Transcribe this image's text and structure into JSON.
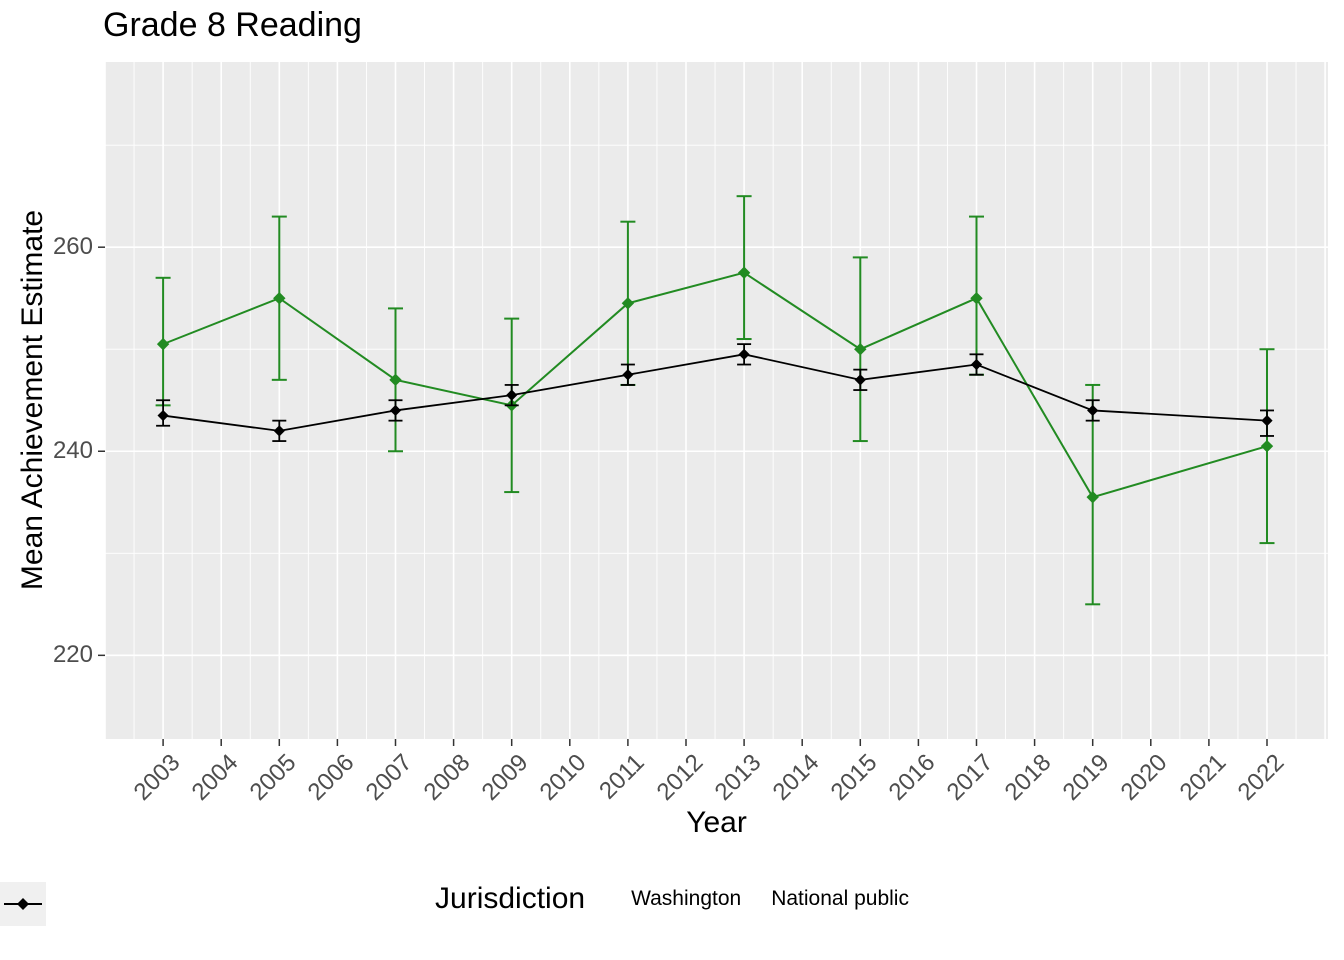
{
  "chart_data": {
    "type": "line",
    "title": "Grade 8 Reading",
    "xlabel": "Year",
    "ylabel": "Mean Achievement Estimate",
    "legend_title": "Jurisdiction",
    "legend_position": "bottom",
    "grid": true,
    "x": [
      2003,
      2005,
      2007,
      2009,
      2011,
      2013,
      2015,
      2017,
      2019,
      2022
    ],
    "series": [
      {
        "name": "Washington",
        "color": "#228B22",
        "values": [
          250.5,
          255,
          247,
          244.5,
          254.5,
          257.5,
          250,
          255,
          235.5,
          240.5
        ],
        "ci_low": [
          244.5,
          247,
          240,
          236,
          246.5,
          251,
          241,
          247.5,
          225,
          231
        ],
        "ci_high": [
          257,
          263,
          254,
          253,
          262.5,
          265,
          259,
          263,
          246.5,
          250
        ]
      },
      {
        "name": "National public",
        "color": "#000000",
        "values": [
          243.5,
          242,
          244,
          245.5,
          247.5,
          249.5,
          247,
          248.5,
          244,
          243
        ],
        "ci_low": [
          242.5,
          241,
          243,
          244.5,
          246.5,
          248.5,
          246,
          247.5,
          243,
          241.5
        ],
        "ci_high": [
          245,
          243,
          245,
          246.5,
          248.5,
          250.5,
          248,
          249.5,
          245,
          244
        ]
      }
    ],
    "x_ticks": [
      2003,
      2004,
      2005,
      2006,
      2007,
      2008,
      2009,
      2010,
      2011,
      2012,
      2013,
      2014,
      2015,
      2016,
      2017,
      2018,
      2019,
      2020,
      2021,
      2022
    ],
    "y_ticks": [
      220,
      240,
      260
    ],
    "y_minor_ticks": [
      230,
      250,
      270
    ],
    "xlim": [
      2002.0,
      2023.05
    ],
    "ylim": [
      211.8,
      278.15
    ],
    "colors": {
      "panel_background": "#EBEBEB",
      "grid": "#FFFFFF",
      "tick_label": "#4D4D4D",
      "tick_mark": "#333333",
      "legend_key_background": "#F0F0F0"
    }
  }
}
